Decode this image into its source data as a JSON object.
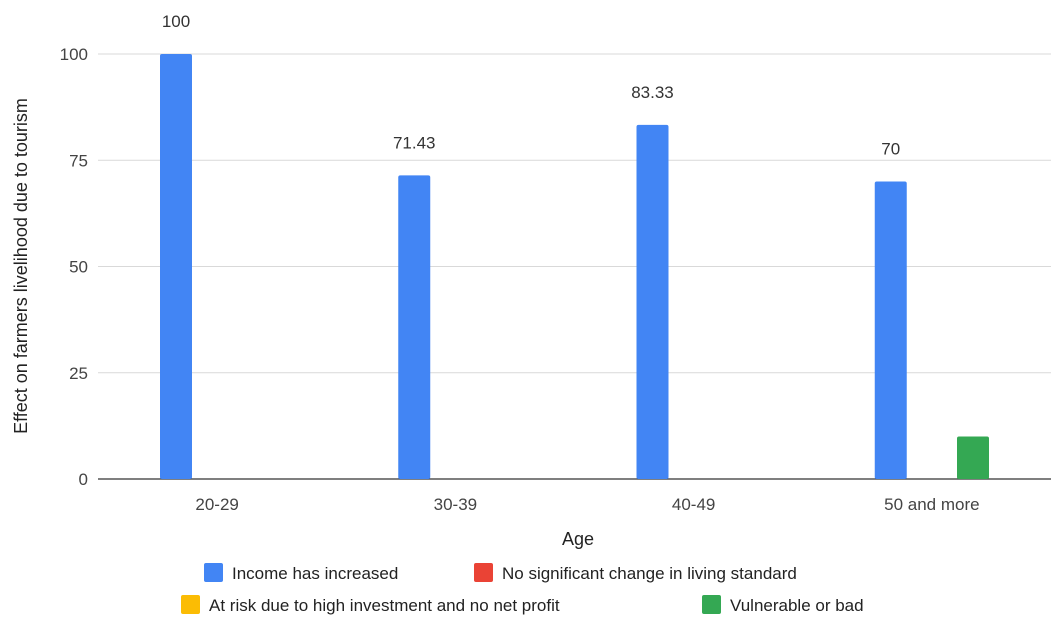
{
  "chart_data": {
    "type": "bar",
    "xlabel": "Age",
    "ylabel": "Effect on farmers livelihood due to tourism",
    "categories": [
      "20-29",
      "30-39",
      "40-49",
      "50 and more"
    ],
    "ylim": [
      0,
      100
    ],
    "yticks": [
      0,
      25,
      50,
      75,
      100
    ],
    "grid": true,
    "legend_position": "bottom",
    "series": [
      {
        "name": "Income has increased",
        "color": "#4285f4",
        "values": [
          100,
          71.43,
          83.33,
          70
        ],
        "labels": [
          "100",
          "71.43",
          "83.33",
          "70"
        ]
      },
      {
        "name": "No significant change in living standard",
        "color": "#ea4335",
        "values": [
          0,
          0,
          0,
          0
        ],
        "labels": []
      },
      {
        "name": "At risk due to high investment and no net profit",
        "color": "#fbbc04",
        "values": [
          0,
          0,
          0,
          0
        ],
        "labels": []
      },
      {
        "name": "Vulnerable or bad",
        "color": "#34a853",
        "values": [
          0,
          0,
          0,
          10
        ],
        "labels": []
      }
    ]
  }
}
